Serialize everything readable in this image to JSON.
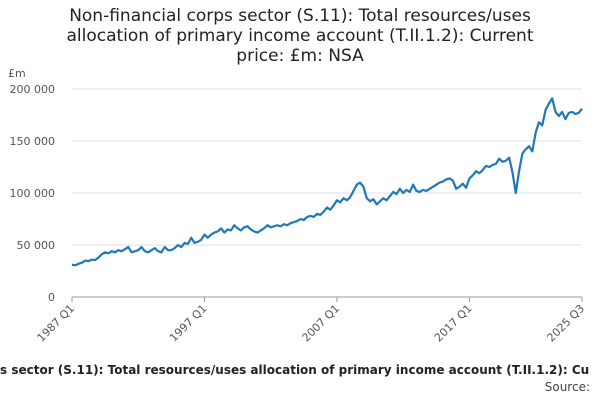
{
  "chart_data": {
    "type": "line",
    "title": "Non-financial corps sector (S.11): Total resources/uses allocation of primary income account (T.II.1.2): Current price: £m: NSA",
    "y_unit": "£m",
    "footer": "s sector (S.11): Total resources/uses allocation of primary income account (T.II.1.2): Cu",
    "source": "Source:",
    "categories": [
      "1987 Q1",
      null,
      null,
      null,
      null,
      null,
      null,
      null,
      null,
      null,
      null,
      null,
      null,
      null,
      null,
      null,
      null,
      null,
      null,
      null,
      null,
      null,
      null,
      null,
      null,
      null,
      null,
      null,
      null,
      null,
      null,
      null,
      null,
      null,
      null,
      null,
      null,
      null,
      null,
      null,
      "1997 Q1",
      null,
      null,
      null,
      null,
      null,
      null,
      null,
      null,
      null,
      null,
      null,
      null,
      null,
      null,
      null,
      null,
      null,
      null,
      null,
      null,
      null,
      null,
      null,
      null,
      null,
      null,
      null,
      null,
      null,
      null,
      null,
      null,
      null,
      null,
      null,
      null,
      null,
      null,
      null,
      "2007 Q1",
      null,
      null,
      null,
      null,
      null,
      null,
      null,
      null,
      null,
      null,
      null,
      null,
      null,
      null,
      null,
      null,
      null,
      null,
      null,
      null,
      null,
      null,
      null,
      null,
      null,
      null,
      null,
      null,
      null,
      null,
      null,
      null,
      null,
      null,
      null,
      null,
      null,
      null,
      null,
      "2017 Q1",
      null,
      null,
      null,
      null,
      null,
      null,
      null,
      null,
      null,
      null,
      null,
      null,
      null,
      null,
      null,
      null,
      null,
      null,
      null,
      null,
      null,
      null,
      null,
      null,
      null,
      null,
      null,
      null,
      null,
      null,
      null,
      null,
      null,
      "2025 Q3"
    ],
    "series": [
      {
        "color": "#1f78b8",
        "values": [
          31000,
          30500,
          32000,
          33000,
          35000,
          34500,
          36000,
          35500,
          38000,
          41000,
          43000,
          42000,
          44000,
          43000,
          45000,
          44000,
          46000,
          48000,
          43000,
          44000,
          45000,
          48000,
          44000,
          43000,
          45000,
          47000,
          44000,
          43000,
          48000,
          45000,
          45000,
          47000,
          50000,
          48000,
          52000,
          51000,
          57000,
          52000,
          53000,
          55000,
          60000,
          57000,
          60000,
          62000,
          63000,
          66000,
          62000,
          65000,
          64000,
          69000,
          66000,
          64000,
          67000,
          68000,
          65000,
          63000,
          62000,
          64000,
          66000,
          69000,
          67000,
          68000,
          69000,
          68000,
          70000,
          69000,
          71000,
          72000,
          73000,
          75000,
          74000,
          77000,
          78000,
          77000,
          80000,
          79000,
          82000,
          86000,
          84000,
          88000,
          93000,
          91000,
          95000,
          93000,
          96000,
          102000,
          108000,
          110000,
          106000,
          95000,
          92000,
          94000,
          89000,
          92000,
          95000,
          93000,
          97000,
          101000,
          99000,
          104000,
          100000,
          103000,
          101000,
          108000,
          102000,
          101000,
          103000,
          102000,
          104000,
          106000,
          108000,
          110000,
          111000,
          113000,
          114000,
          112000,
          104000,
          106000,
          109000,
          105000,
          114000,
          117000,
          121000,
          119000,
          122000,
          126000,
          125000,
          127000,
          128000,
          133000,
          130000,
          131000,
          134000,
          120000,
          100000,
          121000,
          138000,
          142000,
          145000,
          140000,
          158000,
          168000,
          165000,
          180000,
          186000,
          191000,
          178000,
          174000,
          178000,
          171000,
          177000,
          178000,
          176000,
          177000,
          181000
        ]
      }
    ],
    "ylim": [
      0,
      200000
    ],
    "yticks": [
      {
        "value": 0,
        "label": "0"
      },
      {
        "value": 50000,
        "label": "50 000"
      },
      {
        "value": 100000,
        "label": "100 000"
      },
      {
        "value": 150000,
        "label": "150 000"
      },
      {
        "value": 200000,
        "label": "200 000"
      }
    ],
    "grid": true
  }
}
